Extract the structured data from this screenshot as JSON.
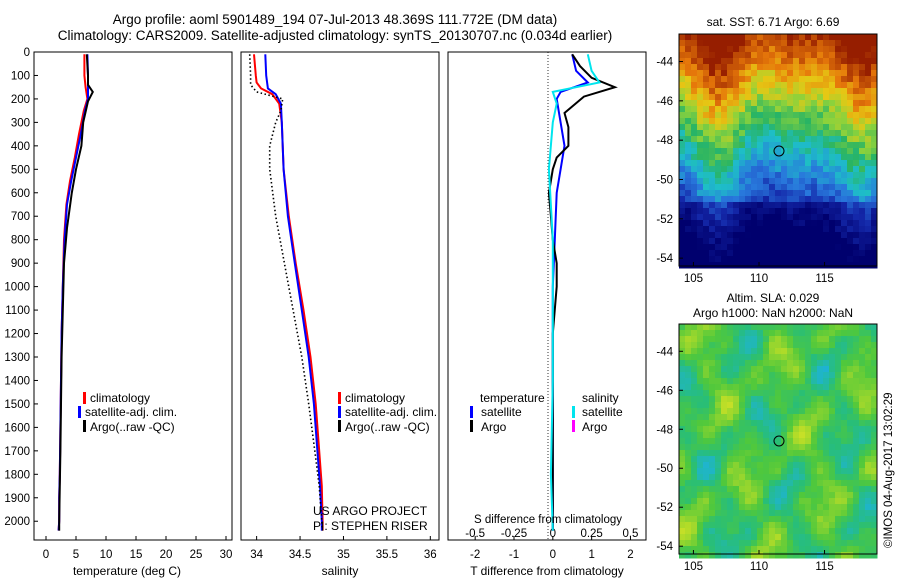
{
  "title": {
    "line1": "Argo profile: aoml 5901489_194 07-Jul-2013 48.369S 111.772E (DM data)",
    "line2": "Climatology: CARS2009. Satellite-adjusted climatology: synTS_20130707.nc (0.034d earlier)"
  },
  "colors": {
    "climatology": "#ff0000",
    "satellite": "#0000ff",
    "argo": "#000000",
    "salinity_satellite": "#00e5ee",
    "salinity_argo": "#ff00ff"
  },
  "depth_ticks": [
    "0",
    "100",
    "200",
    "300",
    "400",
    "500",
    "600",
    "700",
    "800",
    "900",
    "1000",
    "1100",
    "1200",
    "1300",
    "1400",
    "1500",
    "1600",
    "1700",
    "1800",
    "1900",
    "2000"
  ],
  "legend": {
    "climatology": "climatology",
    "satellite_clim": "satellite-adj. clim.",
    "argo": "Argo(..raw -QC)",
    "temperature": "temperature",
    "salinity": "salinity",
    "satellite": "satellite",
    "argo_short": "Argo"
  },
  "credit": {
    "line1": "US ARGO PROJECT",
    "line2": "PI: STEPHEN RISER"
  },
  "imos_stamp": "©IMOS 04-Aug-2017 13:02:29",
  "maps": {
    "sst_title": "sat. SST: 6.71  Argo: 6.69",
    "sla_title_1": "Altim. SLA: 0.029",
    "sla_title_2": "Argo h1000: NaN h2000: NaN",
    "lat_ticks": [
      "-44",
      "-46",
      "-48",
      "-50",
      "-52",
      "-54"
    ],
    "lon_ticks": [
      "105",
      "110",
      "115"
    ]
  },
  "chart_data": [
    {
      "type": "line",
      "panel": "temperature",
      "xlabel": "temperature (deg C)",
      "ylabel": "",
      "x_ticks": [
        "0",
        "5",
        "10",
        "15",
        "20",
        "25",
        "30"
      ],
      "xlim": [
        -2,
        31
      ],
      "ylim": [
        2080,
        0
      ],
      "series": [
        {
          "name": "climatology",
          "style": "solid",
          "x": [
            6.4,
            6.4,
            6.6,
            6.9,
            6.3,
            5.5,
            4.8,
            4.0,
            3.4,
            3.0,
            2.8,
            2.6,
            2.5,
            2.4,
            2.3,
            2.2,
            2.2,
            2.1
          ],
          "y": [
            10,
            100,
            150,
            200,
            250,
            350,
            450,
            550,
            650,
            800,
            1000,
            1200,
            1400,
            1600,
            1800,
            1900,
            2000,
            2040
          ]
        },
        {
          "name": "satellite-adj. clim.",
          "style": "solid",
          "x": [
            6.9,
            7.0,
            7.0,
            7.0,
            6.5,
            5.8,
            5.0,
            4.2,
            3.5,
            3.1,
            2.8,
            2.6,
            2.5,
            2.4,
            2.3,
            2.2,
            2.2,
            2.1
          ],
          "y": [
            10,
            100,
            150,
            200,
            250,
            350,
            450,
            550,
            650,
            800,
            1000,
            1200,
            1400,
            1600,
            1800,
            1900,
            2000,
            2040
          ]
        },
        {
          "name": "Argo(..raw -QC)",
          "style": "solid",
          "x": [
            6.8,
            7.0,
            7.0,
            7.8,
            7.0,
            6.2,
            5.9,
            5.0,
            4.3,
            3.5,
            3.0,
            2.8,
            2.6,
            2.5,
            2.4,
            2.3,
            2.2,
            2.2
          ],
          "y": [
            10,
            100,
            140,
            170,
            210,
            300,
            400,
            500,
            600,
            750,
            900,
            1100,
            1300,
            1500,
            1700,
            1850,
            2000,
            2040
          ]
        }
      ]
    },
    {
      "type": "line",
      "panel": "salinity",
      "xlabel": "salinity",
      "ylabel": "",
      "x_ticks": [
        "34",
        "34.5",
        "35",
        "35.5",
        "36"
      ],
      "xlim": [
        33.82,
        36.1
      ],
      "ylim": [
        2080,
        0
      ],
      "series": [
        {
          "name": "climatology",
          "style": "solid",
          "x": [
            33.97,
            33.99,
            34.0,
            34.05,
            34.18,
            34.26,
            34.29,
            34.31,
            34.37,
            34.45,
            34.54,
            34.62,
            34.68,
            34.72,
            34.75,
            34.76,
            34.76
          ],
          "y": [
            10,
            100,
            130,
            155,
            180,
            220,
            300,
            500,
            700,
            900,
            1100,
            1300,
            1500,
            1700,
            1850,
            2000,
            2040
          ]
        },
        {
          "name": "satellite-adj. clim.",
          "style": "solid",
          "x": [
            34.1,
            34.11,
            34.12,
            34.13,
            34.22,
            34.28,
            34.29,
            34.31,
            34.36,
            34.44,
            34.52,
            34.6,
            34.66,
            34.7,
            34.73,
            34.75,
            34.75
          ],
          "y": [
            10,
            100,
            130,
            155,
            180,
            220,
            300,
            500,
            700,
            900,
            1100,
            1300,
            1500,
            1700,
            1850,
            2000,
            2040
          ]
        },
        {
          "name": "Argo(..raw -QC)",
          "style": "dotted",
          "x": [
            33.92,
            33.93,
            33.93,
            34.0,
            34.3,
            34.28,
            34.22,
            34.15,
            34.15,
            34.22,
            34.32,
            34.42,
            34.52,
            34.6,
            34.67,
            34.72,
            34.75,
            34.76
          ],
          "y": [
            10,
            100,
            140,
            170,
            200,
            250,
            300,
            400,
            500,
            700,
            900,
            1100,
            1300,
            1500,
            1700,
            1850,
            2000,
            2040
          ]
        }
      ]
    },
    {
      "type": "line",
      "panel": "differences",
      "xlabel": "T difference from climatology",
      "x2label": "S difference from climatology",
      "x_ticks": [
        "-2",
        "-1",
        "0",
        "1",
        "2"
      ],
      "x2_ticks": [
        "-0.5",
        "-0.25",
        "0",
        "0.25",
        "0.5"
      ],
      "xlim": [
        -2.7,
        2.4
      ],
      "ylim": [
        2080,
        0
      ],
      "series": [
        {
          "name": "temperature satellite",
          "style": "solid",
          "x": [
            0.5,
            0.6,
            0.9,
            0.2,
            0.1,
            0.2,
            0.3,
            0.2,
            0.1,
            0.05,
            0.0,
            0.0,
            0.0,
            0.0,
            0.0,
            0.0
          ],
          "y": [
            10,
            80,
            130,
            170,
            200,
            300,
            400,
            500,
            600,
            800,
            1000,
            1200,
            1400,
            1600,
            1800,
            2040
          ]
        },
        {
          "name": "temperature Argo",
          "style": "solid",
          "x": [
            0.5,
            0.7,
            1.0,
            1.6,
            0.8,
            0.3,
            0.4,
            0.4,
            0.1,
            0.0,
            -0.1,
            -0.05,
            0.0,
            0.1,
            0.1,
            0.0,
            0.0,
            0.0,
            0.0,
            0.0
          ],
          "y": [
            10,
            60,
            110,
            150,
            190,
            260,
            320,
            400,
            450,
            500,
            600,
            700,
            800,
            900,
            1000,
            1200,
            1400,
            1600,
            1800,
            2040
          ]
        },
        {
          "name": "salinity satellite",
          "style": "solid",
          "x": [
            0.9,
            1.0,
            1.2,
            0.0,
            0.1,
            0.0,
            -0.1,
            0.0,
            0.0,
            0.0,
            -0.05,
            0.0
          ],
          "y": [
            10,
            80,
            130,
            170,
            220,
            300,
            500,
            800,
            1000,
            1400,
            1800,
            2040
          ]
        }
      ]
    }
  ]
}
